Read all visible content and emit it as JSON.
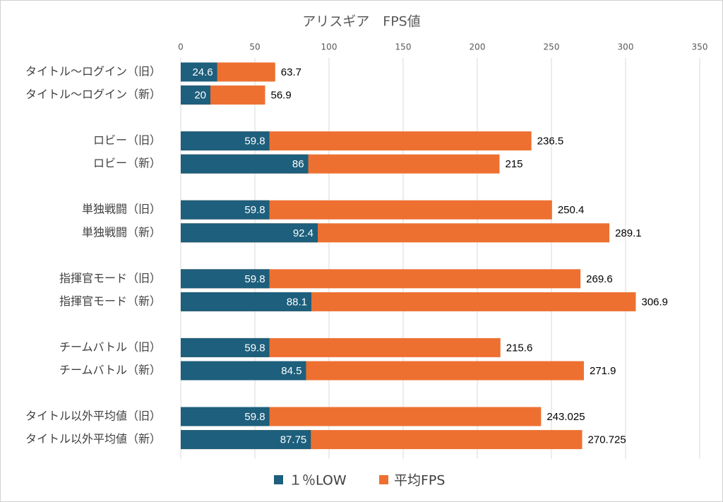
{
  "chart_data": {
    "type": "overlap-hbar",
    "title": "アリスギア　FPS値",
    "categories": [
      "タイトル～ログイン（旧）",
      "タイトル～ログイン（新）",
      "ロビー（旧）",
      "ロビー（新）",
      "単独戦闘（旧）",
      "単独戦闘（新）",
      "指揮官モード（旧）",
      "指揮官モード（新）",
      "チームバトル（旧）",
      "チームバトル（新）",
      "タイトル以外平均値（旧）",
      "タイトル以外平均値（新）"
    ],
    "series": [
      {
        "name": "平均FPS",
        "color": "#ed7031",
        "values": [
          63.7,
          56.9,
          236.5,
          215,
          250.4,
          289.1,
          269.6,
          306.9,
          215.6,
          271.9,
          243.025,
          270.725
        ]
      },
      {
        "name": "１％LOW",
        "color": "#1d5f7c",
        "values": [
          24.6,
          20,
          59.8,
          86,
          59.8,
          92.4,
          59.8,
          88.1,
          59.8,
          84.5,
          59.8,
          87.75
        ]
      }
    ],
    "xlim": [
      0,
      350
    ],
    "xticks": [
      0,
      50,
      100,
      150,
      200,
      250,
      300,
      350
    ],
    "grid": true
  }
}
